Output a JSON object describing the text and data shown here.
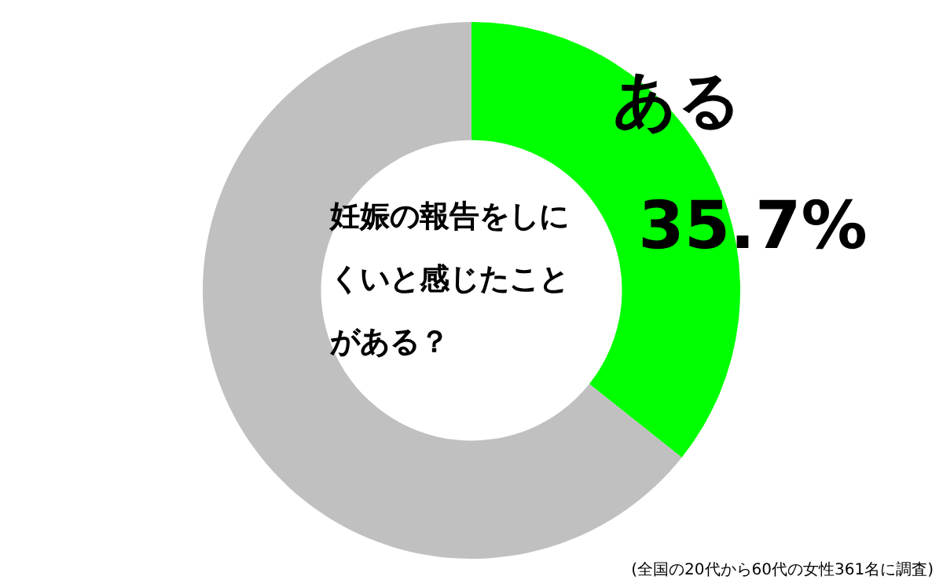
{
  "chart_data": {
    "type": "donut",
    "title": "妊娠の報告をしにくいと感じたことがある？",
    "categories": [
      "ある",
      null
    ],
    "values": [
      35.7,
      64.3
    ],
    "colors": [
      "#00ff00",
      "#c0c0c0"
    ],
    "value_labels": [
      "35.7%",
      null
    ],
    "legend": false,
    "annotations": [
      "(全国の20代から60代の女性361名に調査)"
    ]
  }
}
